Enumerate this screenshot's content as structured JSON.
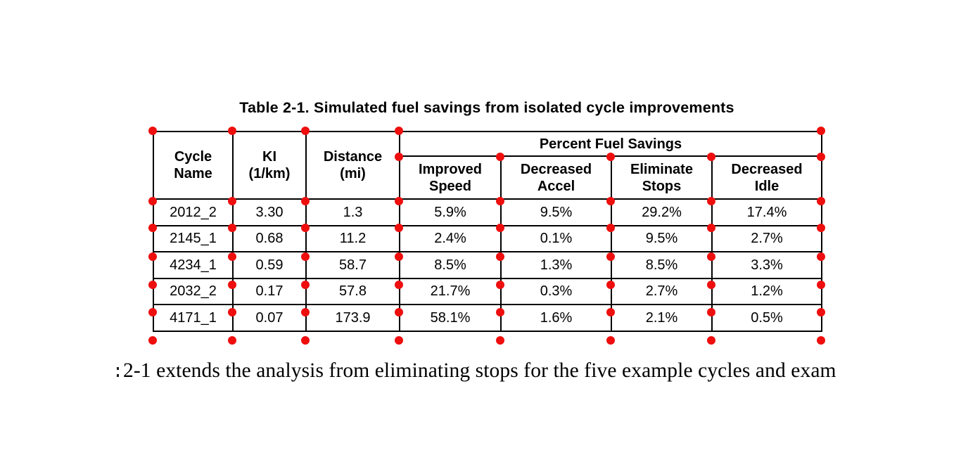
{
  "page": {
    "background": "#ffffff"
  },
  "caption": "Table 2-1. Simulated fuel savings from isolated cycle improvements",
  "table": {
    "columns": [
      {
        "label": "Cycle\nName"
      },
      {
        "label": "KI\n(1/km)"
      },
      {
        "label": "Distance\n(mi)"
      }
    ],
    "group_header": "Percent Fuel Savings",
    "sub_columns": [
      "Improved\nSpeed",
      "Decreased\nAccel",
      "Eliminate\nStops",
      "Decreased\nIdle"
    ],
    "rows": [
      [
        "2012_2",
        "3.30",
        "1.3",
        "5.9%",
        "9.5%",
        "29.2%",
        "17.4%"
      ],
      [
        "2145_1",
        "0.68",
        "11.2",
        "2.4%",
        "0.1%",
        "9.5%",
        "2.7%"
      ],
      [
        "4234_1",
        "0.59",
        "58.7",
        "8.5%",
        "1.3%",
        "8.5%",
        "3.3%"
      ],
      [
        "2032_2",
        "0.17",
        "57.8",
        "21.7%",
        "0.3%",
        "2.7%",
        "1.2%"
      ],
      [
        "4171_1",
        "0.07",
        "173.9",
        "58.1%",
        "1.6%",
        "2.1%",
        "0.5%"
      ]
    ]
  },
  "annotation": {
    "marker_color": "#ee0e0e",
    "marker_name": "grid-intersection-marker"
  },
  "paragraph": {
    "text": "2-1 extends the analysis from eliminating stops for the five example cycles and exam"
  }
}
